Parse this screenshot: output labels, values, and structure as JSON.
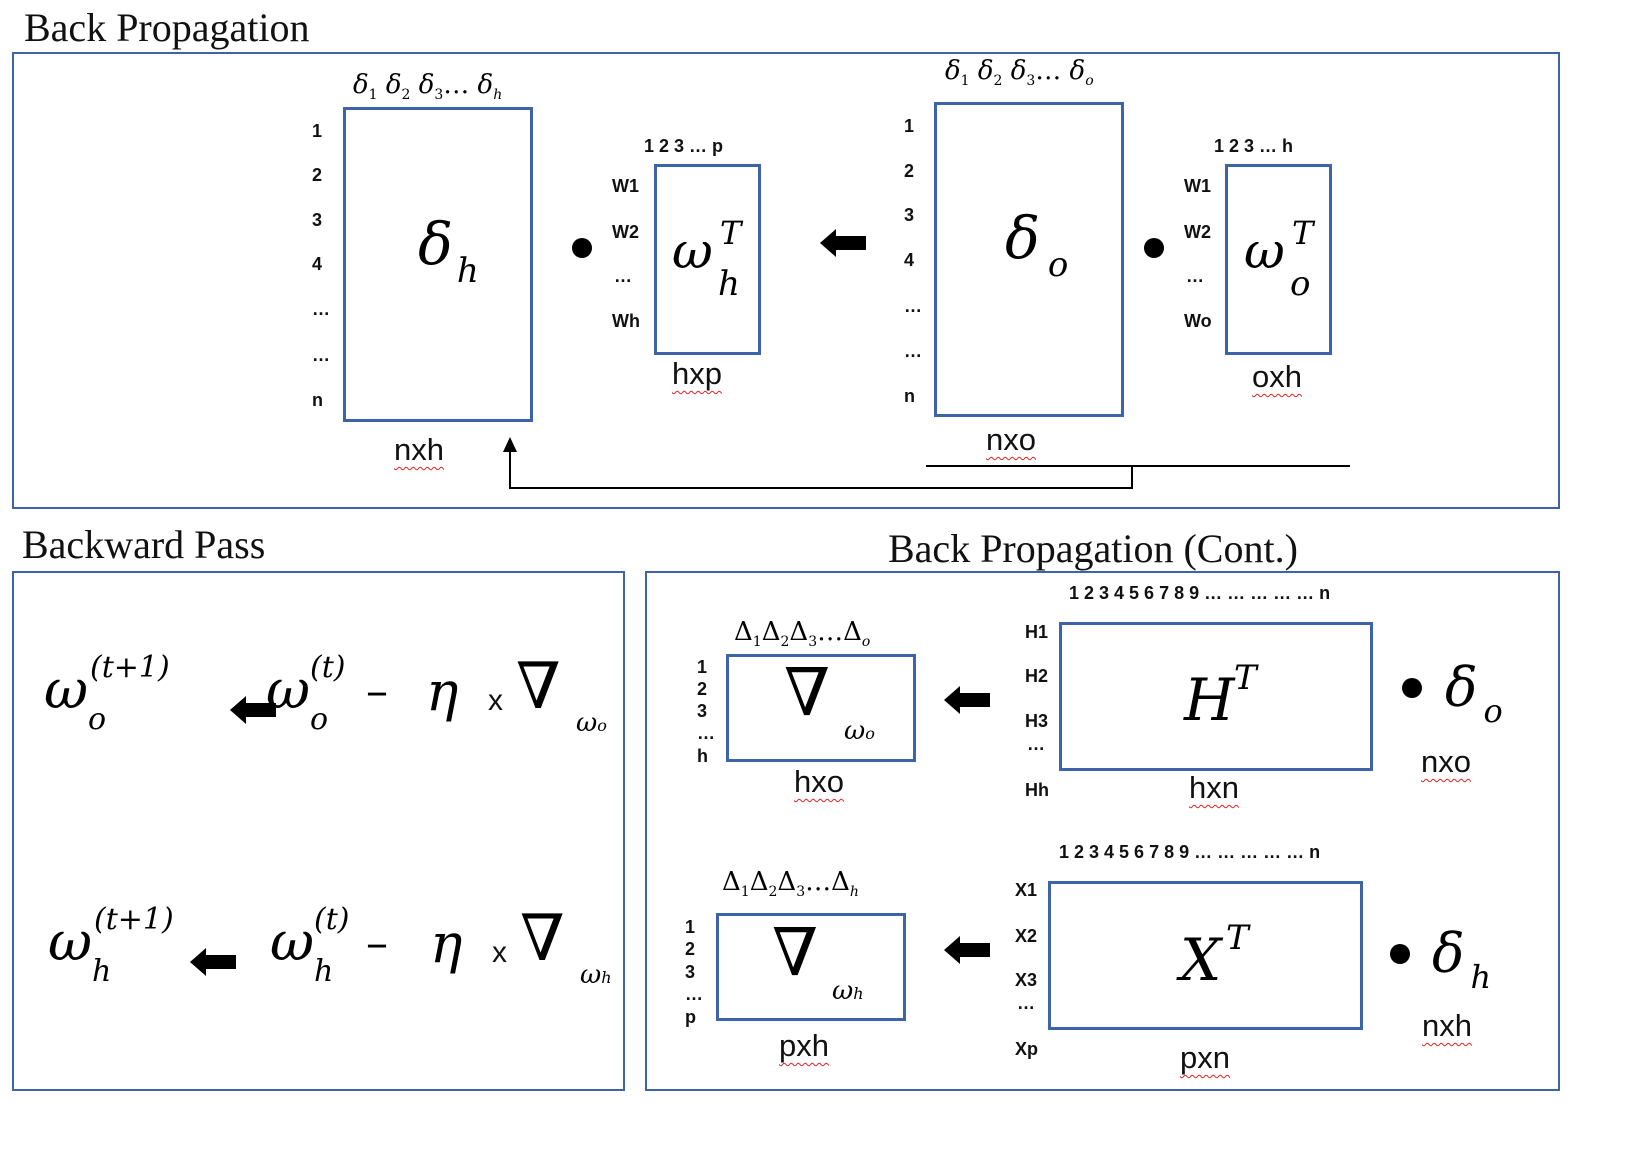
{
  "titles": {
    "back_propagation": "Back Propagation",
    "backward_pass": "Backward Pass",
    "back_propagation_cont": "Back Propagation (Cont.)"
  },
  "top": {
    "dh_matrix": {
      "header": [
        "δ",
        "1",
        "δ",
        "2",
        "δ",
        "3",
        "…",
        "δ",
        "h"
      ],
      "rows": [
        "1",
        "2",
        "3",
        "4",
        "…",
        "…",
        "n"
      ],
      "symbol": "δ",
      "symbol_sub": "h",
      "dim": "nxh"
    },
    "wh_matrix": {
      "cols": "1 2  3      …      p",
      "rows": [
        "W1",
        "W2",
        "…",
        "Wh"
      ],
      "symbol": "ω",
      "symbol_sub": "h",
      "symbol_sup": "T",
      "dim": "hxp"
    },
    "do_matrix": {
      "header": [
        "δ",
        "1",
        "δ",
        "2",
        "δ",
        "3",
        "…",
        "δ",
        "o"
      ],
      "rows": [
        "1",
        "2",
        "3",
        "4",
        "…",
        "…",
        "n"
      ],
      "symbol": "δ",
      "symbol_sub": "o",
      "dim": "nxo"
    },
    "wo_matrix": {
      "cols": "1 2  3      …      h",
      "rows": [
        "W1",
        "W2",
        "…",
        "Wo"
      ],
      "symbol": "ω",
      "symbol_sub": "o",
      "symbol_sup": "T",
      "dim": "oxh"
    }
  },
  "backward": {
    "eq1": {
      "lhs": "ω",
      "lhs_sub": "o",
      "lhs_sup": "(t+1)",
      "rhs": "ω",
      "rhs_sub": "o",
      "rhs_sup": "(t)",
      "minus": "–",
      "eta": "η",
      "times": "x",
      "nabla": "∇",
      "nabla_sub": "ω",
      "nabla_subsub": "o"
    },
    "eq2": {
      "lhs": "ω",
      "lhs_sub": "h",
      "lhs_sup": "(t+1)",
      "rhs": "ω",
      "rhs_sub": "h",
      "rhs_sup": "(t)",
      "minus": "–",
      "eta": "η",
      "times": "x",
      "nabla": "∇",
      "nabla_sub": "ω",
      "nabla_subsub": "h"
    }
  },
  "cont": {
    "grad_o": {
      "header": [
        "Δ",
        "1",
        "Δ",
        "2",
        "Δ",
        "3",
        "…",
        "Δ",
        "o"
      ],
      "rows": [
        "1",
        "2",
        "3",
        "…",
        "h"
      ],
      "symbol": "∇",
      "symbol_sub": "ω",
      "symbol_subsub": "o",
      "dim": "hxo"
    },
    "H_matrix": {
      "cols": "1 2 3 4 5 6 7 8 9 … … …  … … n",
      "rows": [
        "H1",
        "H2",
        "H3",
        "…",
        "Hh"
      ],
      "symbol": "H",
      "symbol_sup": "T",
      "dim": "hxn"
    },
    "delta_o": {
      "symbol": "δ",
      "sub": "o",
      "dim": "nxo"
    },
    "grad_h": {
      "header": [
        "Δ",
        "1",
        "Δ",
        "2",
        "Δ",
        "3",
        "…",
        "Δ",
        "h"
      ],
      "rows": [
        "1",
        "2",
        "3",
        "…",
        "p"
      ],
      "symbol": "∇",
      "symbol_sub": "ω",
      "symbol_subsub": "h",
      "dim": "pxh"
    },
    "X_matrix": {
      "cols": "1 2 3 4 5 6 7 8 9 … … …  … … n",
      "rows": [
        "X1",
        "X2",
        "X3",
        "…",
        "Xp"
      ],
      "symbol": "X",
      "symbol_sup": "T",
      "dim": "pxn"
    },
    "delta_h": {
      "symbol": "δ",
      "sub": "h",
      "dim": "nxh"
    }
  }
}
